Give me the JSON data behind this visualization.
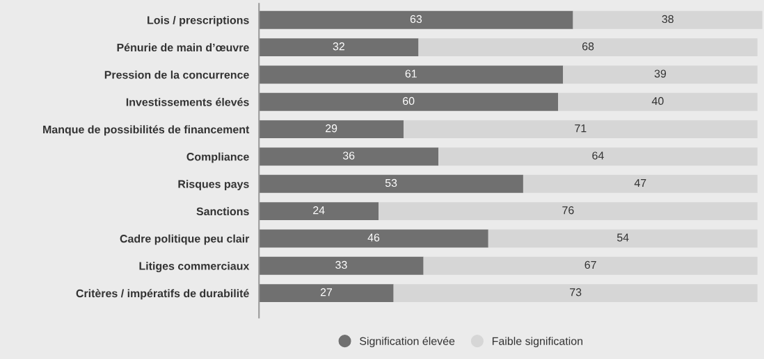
{
  "chart_data": {
    "type": "bar",
    "orientation": "horizontal",
    "stacked": true,
    "data_labels": true,
    "legend": "bottom",
    "grid": false,
    "categories": [
      "Lois / prescriptions",
      "Pénurie de main d’œuvre",
      "Pression de la concurrence",
      "Investissements élevés",
      "Manque de possibilités de financement",
      "Compliance",
      "Risques pays",
      "Sanctions",
      "Cadre politique peu clair",
      "Litiges commerciaux",
      "Critères / impératifs de durabilité"
    ],
    "series": [
      {
        "name": "Signification élevée",
        "color": "#707070",
        "values": [
          63,
          32,
          61,
          60,
          29,
          36,
          53,
          24,
          46,
          33,
          27
        ]
      },
      {
        "name": "Faible signification",
        "color": "#d6d6d6",
        "values": [
          38,
          68,
          39,
          40,
          71,
          64,
          47,
          76,
          54,
          67,
          73
        ]
      }
    ]
  }
}
